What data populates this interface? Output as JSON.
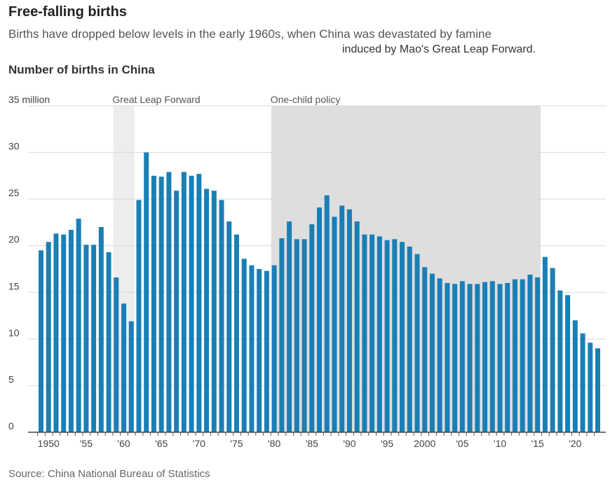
{
  "header": {
    "title": "Free-falling births",
    "subtitle_line1": "Births have dropped below levels in the early 1960s, when China was devastated by famine",
    "subtitle_line2": "induced by Mao's Great Leap Forward."
  },
  "footer": {
    "source": "Source: China National Bureau of Statistics"
  },
  "colors": {
    "bar": "#1a7fb5",
    "shade_glf": "#ededef",
    "shade_ocp": "#dedede",
    "grid": "#d9d9d9"
  },
  "chart_data": {
    "type": "bar",
    "title": "Number of births in China",
    "xlabel": "",
    "ylabel": "",
    "ylim": [
      0,
      35
    ],
    "yticks": [
      0,
      5,
      10,
      15,
      20,
      25,
      30,
      35
    ],
    "ytick_labels": [
      "0",
      "5",
      "10",
      "15",
      "20",
      "25",
      "30",
      "35 million"
    ],
    "xtick_labels": [
      {
        "year": 1950,
        "label": "1950"
      },
      {
        "year": 1955,
        "label": "'55"
      },
      {
        "year": 1960,
        "label": "'60"
      },
      {
        "year": 1965,
        "label": "'65"
      },
      {
        "year": 1970,
        "label": "'70"
      },
      {
        "year": 1975,
        "label": "'75"
      },
      {
        "year": 1980,
        "label": "'80"
      },
      {
        "year": 1985,
        "label": "'85"
      },
      {
        "year": 1990,
        "label": "'90"
      },
      {
        "year": 1995,
        "label": "'95"
      },
      {
        "year": 2000,
        "label": "2000"
      },
      {
        "year": 2005,
        "label": "'05"
      },
      {
        "year": 2010,
        "label": "'10"
      },
      {
        "year": 2015,
        "label": "'15"
      },
      {
        "year": 2020,
        "label": "'20"
      }
    ],
    "annotations": [
      {
        "label": "Great Leap Forward",
        "start": 1959,
        "end": 1961
      },
      {
        "label": "One-child policy",
        "start": 1980,
        "end": 2015
      }
    ],
    "grid": true,
    "years": [
      1949,
      1950,
      1951,
      1952,
      1953,
      1954,
      1955,
      1956,
      1957,
      1958,
      1959,
      1960,
      1961,
      1962,
      1963,
      1964,
      1965,
      1966,
      1967,
      1968,
      1969,
      1970,
      1971,
      1972,
      1973,
      1974,
      1975,
      1976,
      1977,
      1978,
      1979,
      1980,
      1981,
      1982,
      1983,
      1984,
      1985,
      1986,
      1987,
      1988,
      1989,
      1990,
      1991,
      1992,
      1993,
      1994,
      1995,
      1996,
      1997,
      1998,
      1999,
      2000,
      2001,
      2002,
      2003,
      2004,
      2005,
      2006,
      2007,
      2008,
      2009,
      2010,
      2011,
      2012,
      2013,
      2014,
      2015,
      2016,
      2017,
      2018,
      2019,
      2020,
      2021,
      2022,
      2023
    ],
    "values": [
      19.5,
      20.4,
      21.3,
      21.2,
      21.7,
      22.9,
      20.1,
      20.1,
      22.0,
      19.3,
      16.6,
      13.8,
      11.9,
      24.9,
      30.0,
      27.5,
      27.4,
      27.9,
      25.9,
      27.9,
      27.5,
      27.7,
      26.1,
      25.9,
      24.9,
      22.6,
      21.2,
      18.6,
      17.9,
      17.5,
      17.3,
      17.9,
      20.8,
      22.6,
      20.7,
      20.7,
      22.3,
      24.1,
      25.4,
      23.1,
      24.3,
      23.9,
      22.6,
      21.2,
      21.2,
      21.0,
      20.6,
      20.7,
      20.4,
      19.9,
      19.1,
      17.7,
      17.0,
      16.5,
      16.0,
      15.9,
      16.2,
      15.9,
      15.9,
      16.1,
      16.2,
      15.9,
      16.0,
      16.4,
      16.4,
      16.9,
      16.6,
      18.8,
      17.6,
      15.2,
      14.7,
      12.0,
      10.6,
      9.6,
      9.0
    ]
  }
}
